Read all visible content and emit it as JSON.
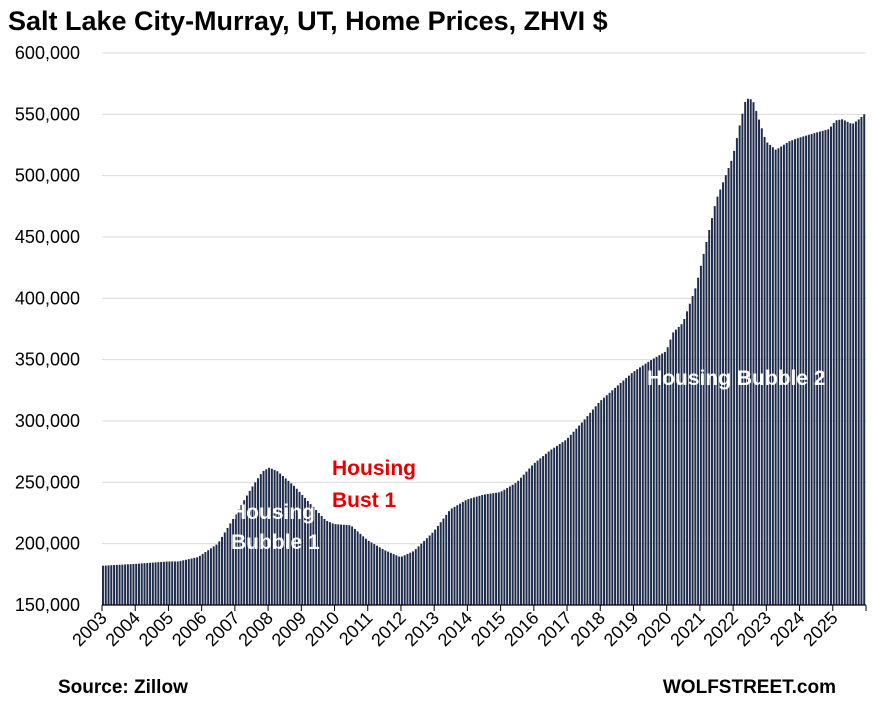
{
  "chart_data": {
    "type": "bar",
    "title": "Salt Lake City-Murray, UT, Home Prices, ZHVI $",
    "ylim": [
      150000,
      600000
    ],
    "yticks": [
      "150,000",
      "200,000",
      "250,000",
      "300,000",
      "350,000",
      "400,000",
      "450,000",
      "500,000",
      "550,000",
      "600,000"
    ],
    "categories": [
      "2003",
      "2004",
      "2005",
      "2006",
      "2007",
      "2008",
      "2009",
      "2010",
      "2011",
      "2012",
      "2013",
      "2014",
      "2015",
      "2016",
      "2017",
      "2018",
      "2019",
      "2020",
      "2021",
      "2022",
      "2023",
      "2024",
      "2025"
    ],
    "x_start": 2003.0,
    "x_end": 2026.0,
    "bar_interval_months": 1,
    "bar_color": "#1f2b4b",
    "grid": true,
    "legend": "none",
    "series_keypoints": [
      {
        "x": 2003.0,
        "y": 182000
      },
      {
        "x": 2004.0,
        "y": 183500
      },
      {
        "x": 2005.0,
        "y": 185500
      },
      {
        "x": 2005.3,
        "y": 185500
      },
      {
        "x": 2005.9,
        "y": 189000
      },
      {
        "x": 2006.5,
        "y": 200000
      },
      {
        "x": 2007.0,
        "y": 222000
      },
      {
        "x": 2007.5,
        "y": 245000
      },
      {
        "x": 2007.85,
        "y": 259000
      },
      {
        "x": 2008.05,
        "y": 262000
      },
      {
        "x": 2008.3,
        "y": 259000
      },
      {
        "x": 2008.8,
        "y": 247000
      },
      {
        "x": 2009.3,
        "y": 232000
      },
      {
        "x": 2009.75,
        "y": 219000
      },
      {
        "x": 2010.0,
        "y": 216000
      },
      {
        "x": 2010.5,
        "y": 215000
      },
      {
        "x": 2011.0,
        "y": 203000
      },
      {
        "x": 2011.5,
        "y": 195000
      },
      {
        "x": 2012.0,
        "y": 189000
      },
      {
        "x": 2012.4,
        "y": 194000
      },
      {
        "x": 2013.0,
        "y": 210000
      },
      {
        "x": 2013.5,
        "y": 228000
      },
      {
        "x": 2014.0,
        "y": 236000
      },
      {
        "x": 2014.5,
        "y": 240000
      },
      {
        "x": 2015.0,
        "y": 242000
      },
      {
        "x": 2015.5,
        "y": 250000
      },
      {
        "x": 2016.0,
        "y": 265000
      },
      {
        "x": 2016.5,
        "y": 276000
      },
      {
        "x": 2017.0,
        "y": 285000
      },
      {
        "x": 2017.5,
        "y": 300000
      },
      {
        "x": 2018.0,
        "y": 316000
      },
      {
        "x": 2018.5,
        "y": 328000
      },
      {
        "x": 2019.0,
        "y": 340000
      },
      {
        "x": 2019.5,
        "y": 349000
      },
      {
        "x": 2020.0,
        "y": 357000
      },
      {
        "x": 2020.2,
        "y": 372000
      },
      {
        "x": 2020.5,
        "y": 380000
      },
      {
        "x": 2020.9,
        "y": 410000
      },
      {
        "x": 2021.2,
        "y": 445000
      },
      {
        "x": 2021.5,
        "y": 480000
      },
      {
        "x": 2022.0,
        "y": 515000
      },
      {
        "x": 2022.2,
        "y": 540000
      },
      {
        "x": 2022.4,
        "y": 563000
      },
      {
        "x": 2022.6,
        "y": 562000
      },
      {
        "x": 2022.8,
        "y": 545000
      },
      {
        "x": 2023.0,
        "y": 528000
      },
      {
        "x": 2023.3,
        "y": 521000
      },
      {
        "x": 2023.7,
        "y": 528000
      },
      {
        "x": 2024.0,
        "y": 531000
      },
      {
        "x": 2024.5,
        "y": 535000
      },
      {
        "x": 2024.9,
        "y": 538000
      },
      {
        "x": 2025.1,
        "y": 545000
      },
      {
        "x": 2025.3,
        "y": 546000
      },
      {
        "x": 2025.6,
        "y": 542000
      },
      {
        "x": 2025.8,
        "y": 546000
      },
      {
        "x": 2026.0,
        "y": 551000
      }
    ],
    "annotations": [
      {
        "id": "bubble1",
        "lines": [
          "Housing",
          "Bubble 1"
        ],
        "color": "#ffffff"
      },
      {
        "id": "bust1",
        "lines": [
          "Housing",
          "Bust 1"
        ],
        "color": "#e60000"
      },
      {
        "id": "bubble2",
        "lines": [
          "Housing Bubble 2"
        ],
        "color": "#ffffff"
      }
    ]
  },
  "footer": {
    "source": "Source: Zillow",
    "brand": "WOLFSTREET.com"
  }
}
